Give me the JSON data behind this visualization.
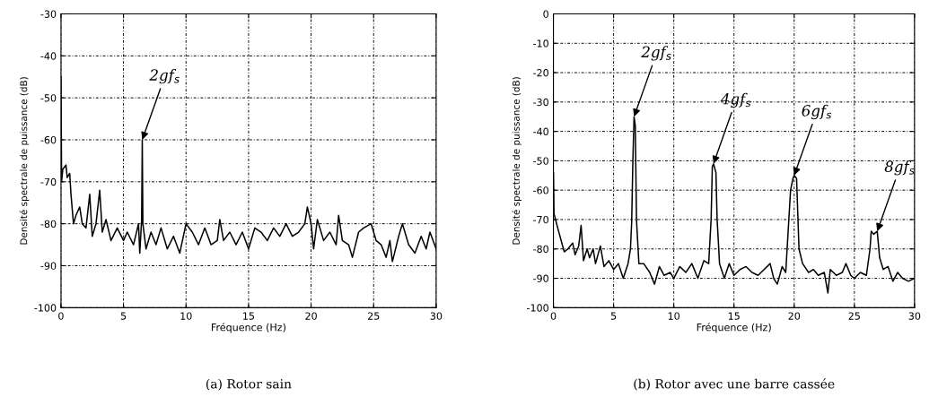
{
  "chart_data": [
    {
      "type": "line",
      "title": "(a) Rotor sain",
      "xlabel": "Fréquence (Hz)",
      "ylabel": "Densité spectrale de puissance (dB)",
      "xlim": [
        0,
        30
      ],
      "xticks": [
        0,
        5,
        10,
        15,
        20,
        25,
        30
      ],
      "ylim": [
        -100,
        -30
      ],
      "yticks": [
        -100,
        -90,
        -80,
        -70,
        -60,
        -50,
        -40,
        -30
      ],
      "grid": true,
      "marker": "none",
      "line_style": "solid",
      "series": [
        {
          "color": "#000000",
          "x": [
            0,
            0.05,
            0.15,
            0.4,
            0.5,
            0.7,
            0.8,
            1.0,
            1.2,
            1.5,
            1.7,
            2.0,
            2.3,
            2.5,
            2.8,
            3.1,
            3.3,
            3.6,
            4.0,
            4.5,
            5.0,
            5.3,
            5.8,
            6.2,
            6.3,
            6.45,
            6.5,
            6.55,
            6.8,
            7.2,
            7.6,
            8.0,
            8.5,
            9.0,
            9.5,
            10.0,
            10.5,
            11.0,
            11.5,
            12.0,
            12.5,
            12.7,
            13.0,
            13.5,
            14.0,
            14.5,
            15.0,
            15.5,
            16.0,
            16.5,
            17.0,
            17.5,
            18.0,
            18.5,
            19.0,
            19.5,
            19.7,
            20.0,
            20.2,
            20.5,
            21.0,
            21.5,
            22.0,
            22.2,
            22.5,
            23.0,
            23.3,
            23.8,
            24.2,
            24.8,
            25.2,
            25.6,
            26.0,
            26.3,
            26.5,
            27.0,
            27.3,
            27.8,
            28.3,
            28.8,
            29.2,
            29.5,
            30.0
          ],
          "values": [
            -45,
            -70,
            -67,
            -66,
            -69,
            -68,
            -73,
            -80,
            -78,
            -76,
            -80,
            -81,
            -73,
            -83,
            -80,
            -72,
            -82,
            -79,
            -84,
            -81,
            -84,
            -82,
            -85,
            -80,
            -87,
            -79,
            -60,
            -80,
            -86,
            -82,
            -85,
            -81,
            -86,
            -83,
            -87,
            -80,
            -82,
            -85,
            -81,
            -85,
            -84,
            -79,
            -84,
            -82,
            -85,
            -82,
            -86,
            -81,
            -82,
            -84,
            -81,
            -83,
            -80,
            -83,
            -82,
            -80,
            -76,
            -80,
            -86,
            -79,
            -84,
            -82,
            -85,
            -78,
            -84,
            -85,
            -88,
            -82,
            -81,
            -80,
            -84,
            -85,
            -88,
            -84,
            -89,
            -83,
            -80,
            -85,
            -87,
            -83,
            -86,
            -82,
            -86
          ]
        }
      ],
      "annotations": [
        {
          "text": "2gf$_{s}$",
          "x": 6.5,
          "y": -60
        }
      ]
    },
    {
      "type": "line",
      "title": "(b) Rotor avec une barre cassée",
      "xlabel": "Fréquence (Hz)",
      "ylabel": "Densité spectrale de puissance (dB)",
      "xlim": [
        0,
        30
      ],
      "xticks": [
        0,
        5,
        10,
        15,
        20,
        25,
        30
      ],
      "ylim": [
        -100,
        0
      ],
      "yticks": [
        -100,
        -90,
        -80,
        -70,
        -60,
        -50,
        -40,
        -30,
        -20,
        -10,
        0
      ],
      "grid": true,
      "marker": "none",
      "line_style": "solid",
      "series": [
        {
          "color": "#000000",
          "x": [
            0,
            0.05,
            0.3,
            0.5,
            0.7,
            0.9,
            1.2,
            1.6,
            1.8,
            2.1,
            2.3,
            2.5,
            2.8,
            3.0,
            3.3,
            3.5,
            3.9,
            4.2,
            4.6,
            5.0,
            5.4,
            5.8,
            6.2,
            6.4,
            6.5,
            6.6,
            6.7,
            6.8,
            6.9,
            7.1,
            7.5,
            8.0,
            8.4,
            8.8,
            9.2,
            9.7,
            10.0,
            10.5,
            11.0,
            11.5,
            12.0,
            12.5,
            12.9,
            13.1,
            13.2,
            13.3,
            13.5,
            13.6,
            13.8,
            14.2,
            14.6,
            15.0,
            15.5,
            16.0,
            16.5,
            17.0,
            17.5,
            18.0,
            18.3,
            18.6,
            19.0,
            19.3,
            19.7,
            19.9,
            20.0,
            20.2,
            20.4,
            20.7,
            21.2,
            21.6,
            22.0,
            22.5,
            22.8,
            23.0,
            23.5,
            24.0,
            24.3,
            24.7,
            25.0,
            25.5,
            26.0,
            26.3,
            26.4,
            26.6,
            26.9,
            27.1,
            27.4,
            27.8,
            28.2,
            28.6,
            29.0,
            29.5,
            30.0
          ],
          "values": [
            -54,
            -68,
            -72,
            -75,
            -78,
            -81,
            -80,
            -78,
            -82,
            -79,
            -72,
            -84,
            -80,
            -83,
            -80,
            -85,
            -79,
            -86,
            -84,
            -87,
            -85,
            -90,
            -85,
            -80,
            -71,
            -50,
            -35,
            -38,
            -70,
            -85,
            -85,
            -88,
            -92,
            -86,
            -89,
            -88,
            -90,
            -86,
            -88,
            -85,
            -90,
            -84,
            -85,
            -70,
            -52,
            -51,
            -54,
            -70,
            -85,
            -90,
            -85,
            -89,
            -87,
            -86,
            -88,
            -89,
            -87,
            -85,
            -90,
            -92,
            -86,
            -88,
            -60,
            -56,
            -55,
            -56,
            -80,
            -85,
            -88,
            -87,
            -89,
            -88,
            -95,
            -87,
            -89,
            -88,
            -85,
            -89,
            -90,
            -88,
            -89,
            -80,
            -74,
            -75,
            -74,
            -83,
            -87,
            -86,
            -91,
            -88,
            -90,
            -91,
            -90
          ]
        }
      ],
      "annotations": [
        {
          "text": "2gf$_{s}$",
          "x": 6.7,
          "y": -35
        },
        {
          "text": "4gf$_{s}$",
          "x": 13.3,
          "y": -51
        },
        {
          "text": "6gf$_{s}$",
          "x": 20.0,
          "y": -55
        },
        {
          "text": "8gf$_{s}$",
          "x": 26.9,
          "y": -74
        }
      ]
    }
  ]
}
